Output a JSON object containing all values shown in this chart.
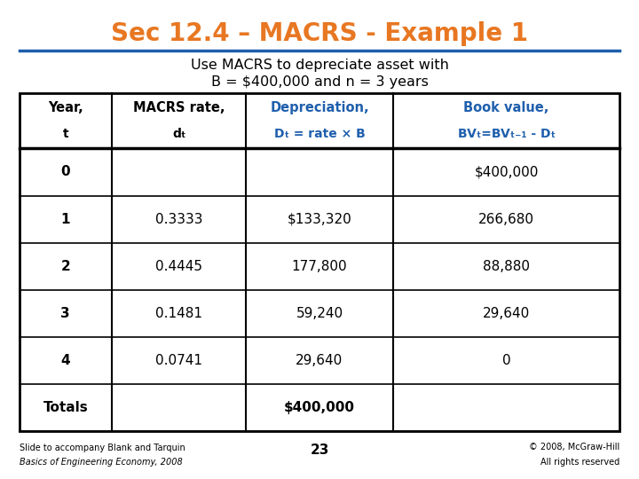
{
  "title": "Sec 12.4 – MACRS - Example 1",
  "title_color": "#E87722",
  "subtitle_line1": "Use MACRS to depreciate asset with",
  "subtitle_line2": "B = $400,000 and n = 3 years",
  "subtitle_color": "#000000",
  "background_color": "#ffffff",
  "header_row1": [
    "Year,",
    "MACRS rate,",
    "Depreciation,",
    "Book value,"
  ],
  "header_row2": [
    "t",
    "dₜ",
    "Dₜ = rate × B",
    "BVₜ=BVₜ₋₁ - Dₜ"
  ],
  "header_black_cols": [
    0,
    1
  ],
  "header_blue_cols": [
    2,
    3
  ],
  "blue_color": "#1F5FAD",
  "black_color": "#000000",
  "data_rows": [
    [
      "0",
      "",
      "",
      "$400,000"
    ],
    [
      "1",
      "0.3333",
      "$133,320",
      "266,680"
    ],
    [
      "2",
      "0.4445",
      "177,800",
      "88,880"
    ],
    [
      "3",
      "0.1481",
      "59,240",
      "29,640"
    ],
    [
      "4",
      "0.0741",
      "29,640",
      "0"
    ]
  ],
  "totals_row": [
    "Totals",
    "",
    "$400,000",
    ""
  ],
  "footer_left_line1": "Slide to accompany Blank and Tarquin",
  "footer_left_line2": "Basics of Engineering Economy, 2008",
  "footer_center": "23",
  "footer_right_line1": "© 2008, McGraw-Hill",
  "footer_right_line2": "All rights reserved",
  "border_color": "#000000",
  "title_underline_color": "#1F5FAD"
}
